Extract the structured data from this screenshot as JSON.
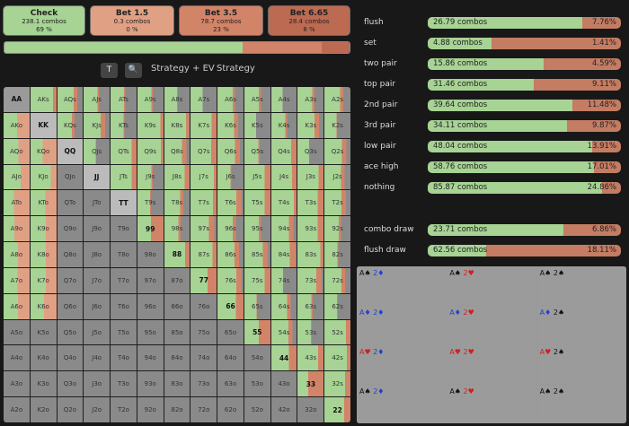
{
  "actions": [
    {
      "title": "Check",
      "combos": "238.1 combos",
      "pct": "69 %",
      "bg": "#a7d394"
    },
    {
      "title": "Bet 1.5",
      "combos": "0.3 combos",
      "pct": "0 %",
      "bg": "#e0a084"
    },
    {
      "title": "Bet 3.5",
      "combos": "78.7 combos",
      "pct": "23 %",
      "bg": "#d28468"
    },
    {
      "title": "Bet 6.65",
      "combos": "28.4 combos",
      "pct": "8 %",
      "bg": "#bd6a52"
    }
  ],
  "frequency": {
    "check": 69,
    "bet1": 0,
    "bet2": 23,
    "bet3": 8
  },
  "toolbar": {
    "t_label": "T",
    "search_icon": "🔍",
    "tab1": "Strategy + EV",
    "tab2": "Strategy"
  },
  "ranks": [
    "A",
    "K",
    "Q",
    "J",
    "T",
    "9",
    "8",
    "7",
    "6",
    "5",
    "4",
    "3",
    "2"
  ],
  "categories": [
    {
      "name": "flush",
      "combos": "26.79 combos",
      "pct": "7.76%",
      "frac": 0.8
    },
    {
      "name": "set",
      "combos": "4.88 combos",
      "pct": "1.41%",
      "frac": 0.33
    },
    {
      "name": "two pair",
      "combos": "15.86 combos",
      "pct": "4.59%",
      "frac": 0.6
    },
    {
      "name": "top pair",
      "combos": "31.46 combos",
      "pct": "9.11%",
      "frac": 0.55
    },
    {
      "name": "2nd pair",
      "combos": "39.64 combos",
      "pct": "11.48%",
      "frac": 0.75
    },
    {
      "name": "3rd pair",
      "combos": "34.11 combos",
      "pct": "9.87%",
      "frac": 0.72
    },
    {
      "name": "low pair",
      "combos": "48.04 combos",
      "pct": "13.91%",
      "frac": 0.85
    },
    {
      "name": "ace high",
      "combos": "58.76 combos",
      "pct": "17.01%",
      "frac": 0.86
    },
    {
      "name": "nothing",
      "combos": "85.87 combos",
      "pct": "24.86%",
      "frac": 0.9
    },
    {
      "name": "combo draw",
      "combos": "23.71 combos",
      "pct": "6.86%",
      "frac": 0.7
    },
    {
      "name": "flush draw",
      "combos": "62.56 combos",
      "pct": "18.11%",
      "frac": 0.3
    }
  ],
  "combos": [
    [
      {
        "c1": "A♠",
        "s1": "♠",
        "c2": "2♦"
      },
      {
        "c1": "A♠",
        "s1": "♠",
        "c2": "2♥"
      },
      {
        "c1": "A♠",
        "s1": "♠",
        "c2": "2♠"
      }
    ],
    [
      {
        "c1": "A♦",
        "s1": "♦",
        "c2": "2♦"
      },
      {
        "c1": "A♦",
        "s1": "♦",
        "c2": "2♥"
      },
      {
        "c1": "A♦",
        "s1": "♦",
        "c2": "2♠"
      }
    ],
    [
      {
        "c1": "A♥",
        "s1": "♥",
        "c2": "2♦"
      },
      {
        "c1": "A♥",
        "s1": "♥",
        "c2": "2♥"
      },
      {
        "c1": "A♥",
        "s1": "♥",
        "c2": "2♠"
      }
    ],
    [
      {
        "c1": "A♠",
        "s1": "♠",
        "c2": "2♦"
      },
      {
        "c1": "A♠",
        "s1": "♠",
        "c2": "2♥"
      },
      {
        "c1": "A♠",
        "s1": "♠",
        "c2": "2♠"
      }
    ]
  ],
  "colors": {
    "check": "#a7d394",
    "bet_small": "#e0a084",
    "bet_mid": "#d28468",
    "bet_big": "#bd6a52",
    "empty": "#8a8a8a"
  }
}
